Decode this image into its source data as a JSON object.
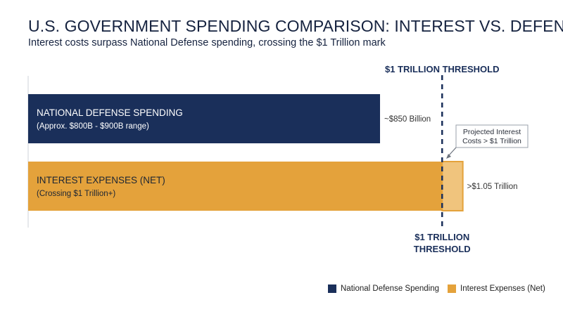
{
  "chart_data": {
    "type": "bar",
    "orientation": "horizontal",
    "title": "U.S. GOVERNMENT SPENDING COMPARISON: INTEREST VS. DEFENSE",
    "subtitle": "Interest costs surpass National Defense spending, crossing the $1 Trillion mark",
    "series": [
      {
        "name": "National Defense Spending",
        "label": "NATIONAL DEFENSE SPENDING",
        "sublabel": "(Approx. $800B - $900B range)",
        "value": 850,
        "value_label": "~$850 Billion",
        "color": "#1a2f5a"
      },
      {
        "name": "Interest Expenses (Net)",
        "label": "INTEREST EXPENSES (NET)",
        "sublabel": "(Crossing $1 Trillion+)",
        "value": 1050,
        "value_label": ">$1.05 Trillion",
        "color": "#e4a23b",
        "excess_color": "#f0c47d"
      }
    ],
    "units": "billions USD",
    "xlim": [
      0,
      1100
    ],
    "threshold": {
      "value": 1000,
      "label_top": "$1 TRILLION THRESHOLD",
      "label_bottom": [
        "$1 TRILLION",
        "THRESHOLD"
      ],
      "color": "#1a2f5a"
    },
    "annotation": {
      "text": [
        "Projected Interest",
        "Costs > $1 Trillion"
      ]
    },
    "legend": {
      "position": "bottom-right",
      "items": [
        "National Defense Spending",
        "Interest Expenses (Net)"
      ]
    }
  }
}
